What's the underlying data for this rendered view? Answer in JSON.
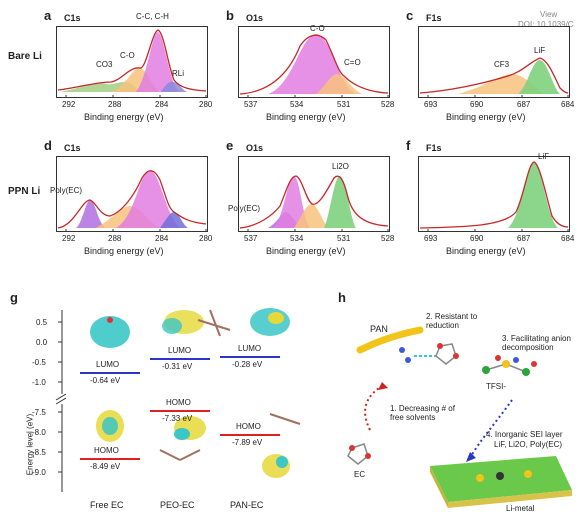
{
  "watermark": {
    "line1": "View",
    "line2": "DOI: 10.1039/C"
  },
  "rows": {
    "bare": "Bare Li",
    "ppn": "PPN Li"
  },
  "xps": [
    {
      "letter": "a",
      "title": "C1s",
      "xticks": [
        "292",
        "288",
        "284",
        "280"
      ],
      "xlabel": "Binding energy (eV)",
      "peaks": [
        "CO3",
        "C-O",
        "C-C, C-H",
        "RLi"
      ]
    },
    {
      "letter": "b",
      "title": "O1s",
      "xticks": [
        "537",
        "534",
        "531",
        "528"
      ],
      "xlabel": "Binding energy (eV)",
      "peaks": [
        "C-O",
        "C=O"
      ]
    },
    {
      "letter": "c",
      "title": "F1s",
      "xticks": [
        "693",
        "690",
        "687",
        "684"
      ],
      "xlabel": "Binding energy (eV)",
      "peaks": [
        "CF3",
        "LiF"
      ]
    },
    {
      "letter": "d",
      "title": "C1s",
      "xticks": [
        "292",
        "288",
        "284",
        "280"
      ],
      "xlabel": "Binding energy (eV)",
      "peaks": [
        "Poly(EC)"
      ]
    },
    {
      "letter": "e",
      "title": "O1s",
      "xticks": [
        "537",
        "534",
        "531",
        "528"
      ],
      "xlabel": "Binding energy (eV)",
      "peaks": [
        "Li2O",
        "Poly(EC)"
      ]
    },
    {
      "letter": "f",
      "title": "F1s",
      "xticks": [
        "693",
        "690",
        "687",
        "684"
      ],
      "xlabel": "Binding energy (eV)",
      "peaks": [
        "LiF"
      ]
    }
  ],
  "panel_g": {
    "letter": "g",
    "ylabel": "Energy level (eV)",
    "yticks": [
      "0.5",
      "0.0",
      "-0.5",
      "-1.0",
      "-7.5",
      "-8.0",
      "-8.5",
      "-9.0"
    ],
    "columns": [
      "Free EC",
      "PEO-EC",
      "PAN-EC"
    ],
    "lumo": {
      "label": "LUMO",
      "values": [
        "-0.64 eV",
        "-0.31 eV",
        "-0.28 eV"
      ]
    },
    "homo": {
      "label": "HOMO",
      "values": [
        "-8.49 eV",
        "-7.33 eV",
        "-7.89 eV"
      ]
    }
  },
  "panel_h": {
    "letter": "h",
    "pan": "PAN",
    "step2": "2. Resistant to reduction",
    "step3": "3. Facilitating anion decomposition",
    "tfsi": "TFSI-",
    "step1": "1. Decreasing # of free solvents",
    "ec": "EC",
    "step4": "4. Inorganic SEI layer",
    "step4b": "LiF, Li2O, Poly(EC)",
    "li": "Li-metal"
  }
}
